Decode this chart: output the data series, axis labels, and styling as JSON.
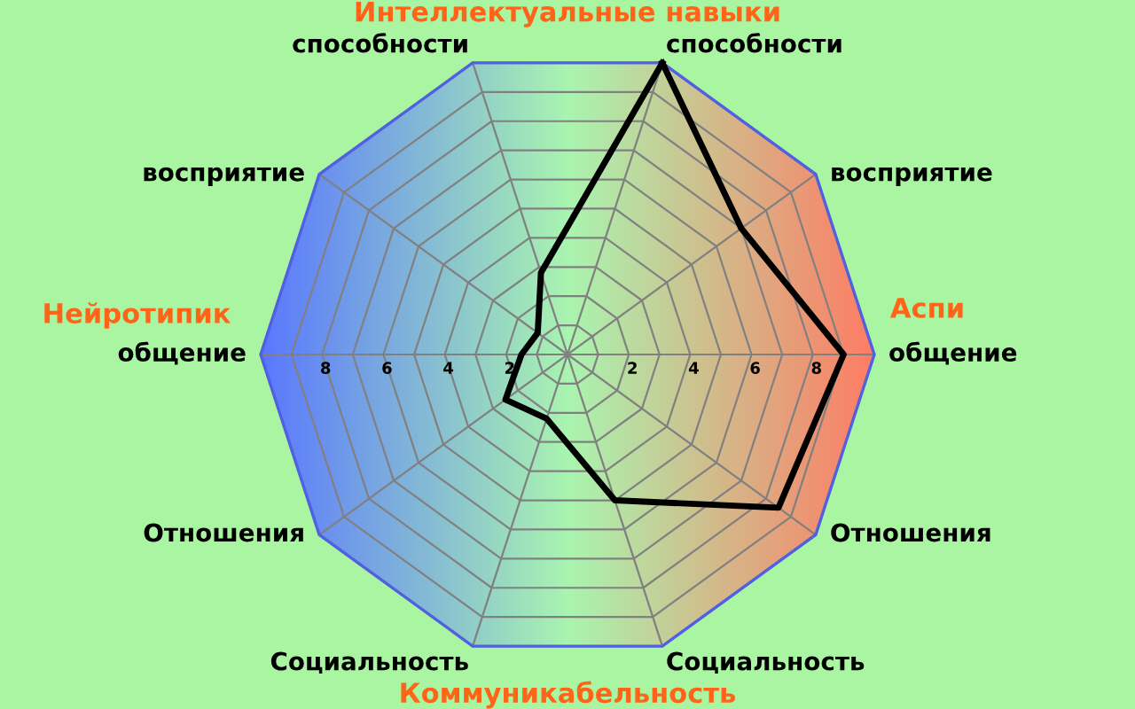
{
  "chart_data": {
    "type": "radar",
    "categories": [
      "способности",
      "восприятие",
      "общение",
      "Отношения",
      "Социальность",
      "Социальность",
      "Отношения",
      "общение",
      "восприятие",
      "способности"
    ],
    "series": [
      {
        "color": "#000000",
        "values": [
          10,
          7,
          9,
          8.5,
          5,
          2.2,
          2.5,
          1.5,
          1.2,
          2.8
        ]
      }
    ],
    "ylim": [
      0,
      10
    ],
    "yticks": [
      2,
      4,
      6,
      8,
      2,
      4,
      6,
      8
    ],
    "grid": true,
    "marker": "none",
    "line_style": "solid",
    "annotations": [
      "Интеллектуальные навыки",
      "Коммуникабельность",
      "Нейротипик",
      "Аспи"
    ]
  }
}
